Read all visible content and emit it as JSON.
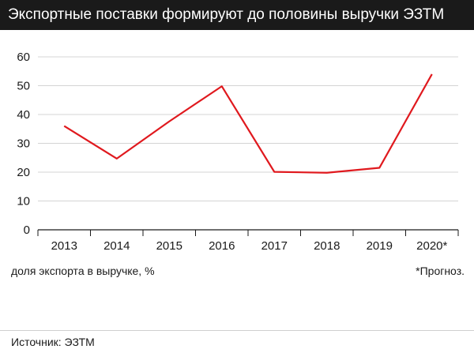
{
  "title": "Экспортные поставки формируют до половины выручки ЭЗТМ",
  "axis_note": "доля экспорта в выручке, %",
  "footnote": "*Прогноз.",
  "source": "Источник: ЭЗТМ",
  "colors": {
    "line": "#e0191e",
    "title_bg": "#1a1a1a",
    "grid": "#d4d4d4"
  },
  "chart_data": {
    "type": "line",
    "categories": [
      "2013",
      "2014",
      "2015",
      "2016",
      "2017",
      "2018",
      "2019",
      "2020*"
    ],
    "series": [
      {
        "values": [
          36,
          24.7,
          37.6,
          49.8,
          20.1,
          19.8,
          21.5,
          54
        ]
      }
    ],
    "yticks": [
      0,
      10,
      20,
      30,
      40,
      50,
      60
    ],
    "ylim": [
      0,
      60
    ],
    "xlabel": "",
    "ylabel": "доля экспорта в выручке, %",
    "grid": true
  }
}
